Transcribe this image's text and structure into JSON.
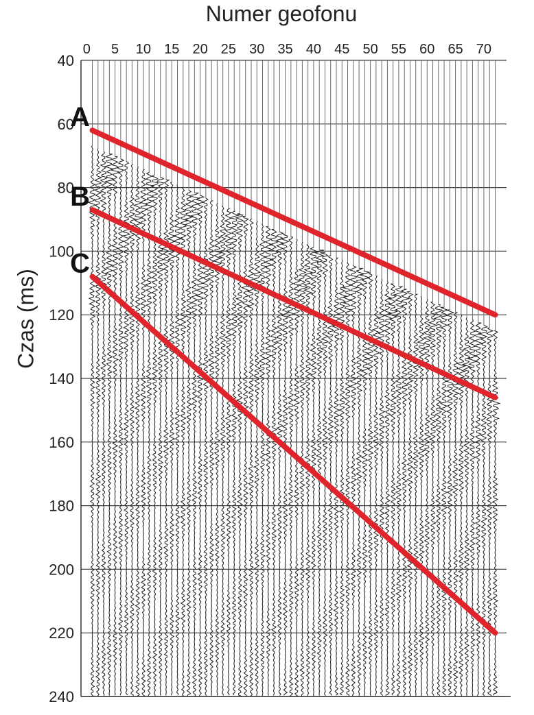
{
  "chart_data": {
    "type": "line",
    "title": "Numer geofonu",
    "xlabel": "Numer geofonu",
    "ylabel": "Czas (ms)",
    "x_ticks": [
      0,
      5,
      10,
      15,
      20,
      25,
      30,
      35,
      40,
      45,
      50,
      55,
      60,
      65,
      70
    ],
    "y_ticks": [
      40,
      60,
      80,
      100,
      120,
      140,
      160,
      180,
      200,
      220,
      240
    ],
    "xlim": [
      -1,
      74
    ],
    "ylim": [
      40,
      240
    ],
    "grid": true,
    "background": "seismic wiggle traces, 72 channels",
    "series": [
      {
        "name": "A",
        "color": "#e0242b",
        "x": [
          1,
          72
        ],
        "y": [
          62,
          120
        ]
      },
      {
        "name": "B",
        "color": "#e0242b",
        "x": [
          1,
          72
        ],
        "y": [
          87,
          146
        ]
      },
      {
        "name": "C",
        "color": "#e0242b",
        "x": [
          1,
          72
        ],
        "y": [
          108,
          220
        ]
      }
    ]
  },
  "colors": {
    "traces": "#2a2a2a",
    "lines": "#e0242b",
    "grid": "#555555"
  }
}
